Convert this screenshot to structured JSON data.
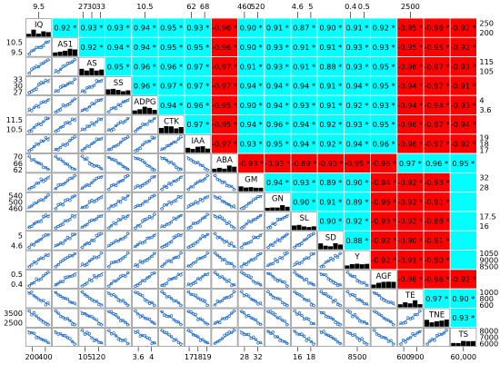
{
  "chart_data": {
    "type": "heatmap",
    "variables": [
      "IQ",
      "AS1",
      "AS",
      "SS",
      "ADPG",
      "CTK",
      "IAA",
      "ABA",
      "GM",
      "GN",
      "SL",
      "SD",
      "Y",
      "AGF",
      "TE",
      "TNE",
      "TS"
    ],
    "correlations_upper": [
      [
        "0.92 *",
        "0.93 *",
        "0.93 *",
        "0.94 *",
        "0.95 *",
        "0.93 *",
        "-0.96 *",
        "0.90 *",
        "0.91 *",
        "0.87 *",
        "0.90 *",
        "0.91 *",
        "0.92 *",
        "-0.95 *",
        "-0.96 *",
        "-0.92 *"
      ],
      [
        "0.92 *",
        "0.94 *",
        "0.94 *",
        "0.95 *",
        "0.95 *",
        "-0.96 *",
        "0.90 *",
        "0.93 *",
        "0.91 *",
        "0.91 *",
        "0.93 *",
        "0.93 *",
        "-0.95 *",
        "-0.95 *",
        "-0.92 *"
      ],
      [
        "0.95 *",
        "0.96 *",
        "0.96 *",
        "0.97 *",
        "-0.97 *",
        "0.91 *",
        "0.93 *",
        "0.91 *",
        "0.88 *",
        "0.93 *",
        "0.95 *",
        "-0.96 *",
        "-0.97 *",
        "-0.93 *"
      ],
      [
        "0.96 *",
        "0.97 *",
        "0.97 *",
        "-0.97 *",
        "0.94 *",
        "0.94 *",
        "0.94 *",
        "0.91 *",
        "0.94 *",
        "0.95 *",
        "-0.94 *",
        "-0.97 *",
        "-0.91 *"
      ],
      [
        "0.94 *",
        "0.96 *",
        "-0.95 *",
        "0.90 *",
        "0.94 *",
        "0.93 *",
        "0.91 *",
        "0.92 *",
        "0.93 *",
        "-0.94 *",
        "-0.94 *",
        "-0.93 *"
      ],
      [
        "0.97 *",
        "-0.95 *",
        "0.94 *",
        "0.96 *",
        "0.94 *",
        "0.92 *",
        "0.93 *",
        "0.95 *",
        "-0.96 *",
        "-0.97 *",
        "-0.94 *"
      ],
      [
        "-0.97 *",
        "0.93 *",
        "0.95 *",
        "0.94 *",
        "0.92 *",
        "0.94 *",
        "0.96 *",
        "-0.96 *",
        "-0.97 *",
        "-0.92 *"
      ],
      [
        "-0.93 *",
        "-0.93 *",
        "-0.89 *",
        "-0.93 *",
        "-0.95 *",
        "-0.96 *",
        "0.97 *",
        "0.96 *",
        "0.95 *"
      ],
      [
        "0.94 *",
        "0.93 *",
        "0.89 *",
        "0.90 *",
        "-0.94 *",
        "-0.92 *",
        "-0.93 *"
      ],
      [
        "0.90 *",
        "0.91 *",
        "0.89 *",
        "-0.96 *",
        "-0.92 *",
        "-0.91 *"
      ],
      [
        "0.90 *",
        "0.92 *",
        "-0.93 *",
        "-0.92 *",
        "-0.88 *"
      ],
      [
        "0.88 *",
        "-0.92 *",
        "-0.90 *",
        "-0.91 *"
      ],
      [
        "-0.92 *",
        "-0.91 *",
        "-0.90 *"
      ],
      [
        "-0.96 *",
        "-0.96 *",
        "-0.92 *"
      ],
      [
        "0.97 *",
        "0.90 *"
      ],
      [
        "0.93 *"
      ]
    ],
    "top_axis": [
      {
        "col": 0,
        "labels": [
          "9.5"
        ]
      },
      {
        "col": 2,
        "labels": [
          "27",
          "30",
          "33"
        ]
      },
      {
        "col": 4,
        "labels": [
          "10.5"
        ]
      },
      {
        "col": 6,
        "labels": [
          "62",
          "68"
        ]
      },
      {
        "col": 8,
        "labels": [
          "460",
          "520"
        ]
      },
      {
        "col": 10,
        "labels": [
          "4.6",
          "5"
        ]
      },
      {
        "col": 12,
        "labels": [
          "0.4",
          "0.5"
        ]
      },
      {
        "col": 14,
        "labels": [
          "2500"
        ]
      }
    ],
    "bottom_axis": [
      {
        "col": 0,
        "labels": [
          "200",
          "400"
        ]
      },
      {
        "col": 2,
        "labels": [
          "105",
          "120"
        ]
      },
      {
        "col": 4,
        "labels": [
          "3.6",
          "4"
        ]
      },
      {
        "col": 6,
        "labels": [
          "17",
          "18",
          "19"
        ]
      },
      {
        "col": 8,
        "labels": [
          "28",
          "32"
        ]
      },
      {
        "col": 10,
        "labels": [
          "16",
          "18"
        ]
      },
      {
        "col": 12,
        "labels": [
          "8500"
        ]
      },
      {
        "col": 14,
        "labels": [
          "600",
          "900"
        ]
      },
      {
        "col": 16,
        "labels": [
          "60,000"
        ]
      }
    ],
    "left_axis": [
      {
        "row": 1,
        "labels": [
          "10.5",
          "9.5"
        ]
      },
      {
        "row": 3,
        "labels": [
          "33",
          "30",
          "27"
        ]
      },
      {
        "row": 5,
        "labels": [
          "11.5",
          "10.5"
        ]
      },
      {
        "row": 7,
        "labels": [
          "70",
          "66",
          "62"
        ]
      },
      {
        "row": 9,
        "labels": [
          "540",
          "500",
          "460"
        ]
      },
      {
        "row": 11,
        "labels": [
          "5",
          "4.6"
        ]
      },
      {
        "row": 13,
        "labels": [
          "0.5",
          "0.4"
        ]
      },
      {
        "row": 15,
        "labels": [
          "3500",
          "2500"
        ]
      }
    ],
    "right_axis": [
      {
        "row": 0,
        "labels": [
          "250",
          "200"
        ]
      },
      {
        "row": 2,
        "labels": [
          "115",
          "105"
        ]
      },
      {
        "row": 4,
        "labels": [
          "4",
          "3.6"
        ]
      },
      {
        "row": 6,
        "labels": [
          "19",
          "18",
          "17"
        ]
      },
      {
        "row": 8,
        "labels": [
          "32",
          "28"
        ]
      },
      {
        "row": 10,
        "labels": [
          "17.5",
          "16"
        ]
      },
      {
        "row": 12,
        "labels": [
          "1050",
          "9000",
          "8500"
        ]
      },
      {
        "row": 14,
        "labels": [
          "1000",
          "800",
          "600"
        ]
      },
      {
        "row": 16,
        "labels": [
          "8000",
          "7000",
          "6000"
        ]
      }
    ],
    "colors": {
      "positive": "#00ffff",
      "negative": "#ff0000",
      "scatter_point": "#1f5fbf",
      "fit_line": "#1e7bd6",
      "histogram": "#000000"
    }
  }
}
